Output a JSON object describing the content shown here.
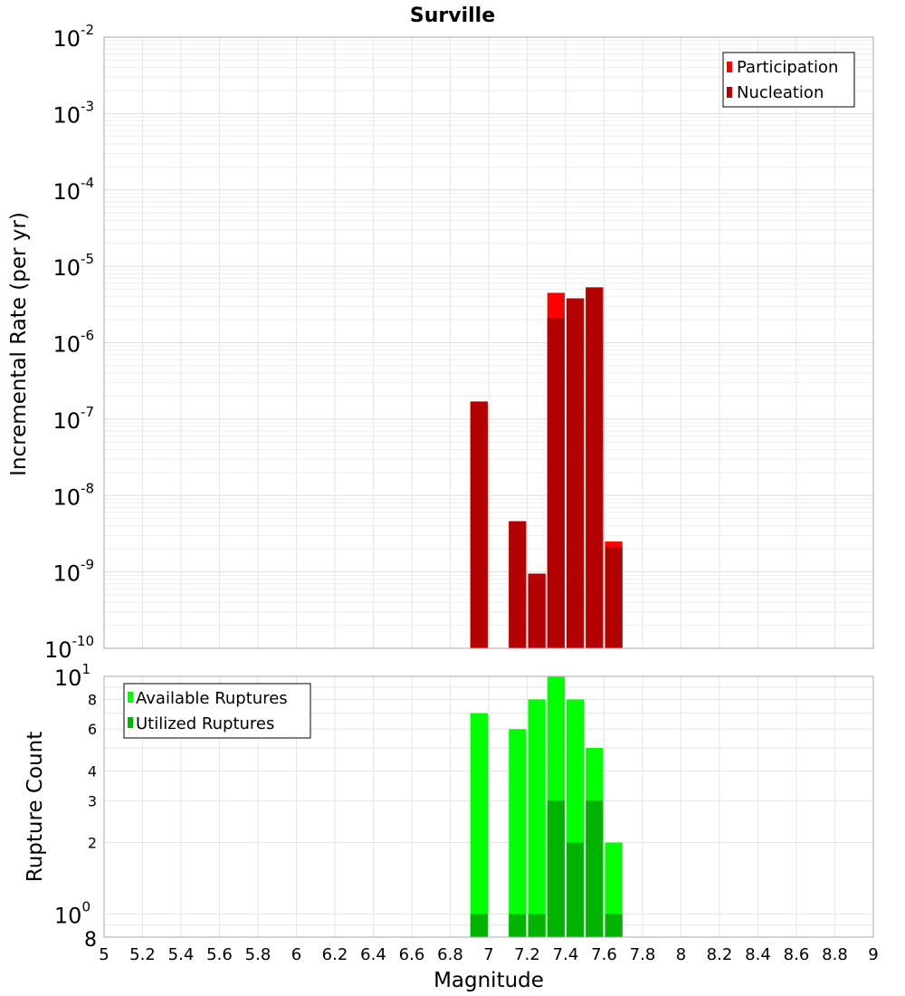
{
  "chart_data": [
    {
      "type": "bar",
      "title": "Surville",
      "ylabel": "Incremental Rate (per yr)",
      "xlabel": "",
      "yscale": "log",
      "ylim": [
        1e-10,
        0.01
      ],
      "xlim": [
        5,
        9
      ],
      "x_ticks": [
        "5",
        "5.2",
        "5.4",
        "5.6",
        "5.8",
        "6",
        "6.2",
        "6.4",
        "6.6",
        "6.8",
        "7",
        "7.2",
        "7.4",
        "7.6",
        "7.8",
        "8",
        "8.2",
        "8.4",
        "8.6",
        "8.8",
        "9"
      ],
      "y_tick_bases": [
        "10",
        "10",
        "10",
        "10",
        "10",
        "10",
        "10",
        "10",
        "10"
      ],
      "y_tick_exponents": [
        "-2",
        "-3",
        "-4",
        "-5",
        "-6",
        "-7",
        "-8",
        "-9",
        "-10"
      ],
      "legend_position": "top-right",
      "grid": true,
      "x": [
        6.95,
        7.15,
        7.25,
        7.35,
        7.45,
        7.55,
        7.65
      ],
      "series": [
        {
          "name": "Participation",
          "color": "#ff0000",
          "values": [
            1.7e-07,
            4.6e-09,
            9.5e-10,
            4.5e-06,
            3.8e-06,
            5.3e-06,
            2.5e-09
          ]
        },
        {
          "name": "Nucleation",
          "color": "#b30000",
          "values": [
            1.7e-07,
            4.6e-09,
            9.5e-10,
            2.1e-06,
            3.8e-06,
            5.3e-06,
            2.1e-09
          ]
        }
      ]
    },
    {
      "type": "bar",
      "title": "",
      "ylabel": "Rupture Count",
      "xlabel": "Magnitude",
      "yscale": "log",
      "ylim": [
        0.8,
        10
      ],
      "xlim": [
        5,
        9
      ],
      "x_ticks": [
        "5",
        "5.2",
        "5.4",
        "5.6",
        "5.8",
        "6",
        "6.2",
        "6.4",
        "6.6",
        "6.8",
        "7",
        "7.2",
        "7.4",
        "7.6",
        "7.8",
        "8",
        "8.2",
        "8.4",
        "8.6",
        "8.8",
        "9"
      ],
      "legend_position": "top-left",
      "grid": true,
      "x": [
        6.95,
        7.15,
        7.25,
        7.35,
        7.45,
        7.55,
        7.65
      ],
      "series": [
        {
          "name": "Available Ruptures",
          "color": "#00ff00",
          "values": [
            7,
            6,
            8,
            10,
            8,
            5,
            2
          ]
        },
        {
          "name": "Utilized Ruptures",
          "color": "#00b300",
          "values": [
            1,
            1,
            1,
            3,
            2,
            3,
            1
          ]
        }
      ]
    }
  ],
  "bottom_y_ticks": {
    "major": [
      {
        "value": 10,
        "base": "10",
        "exp": "1"
      },
      {
        "value": 1,
        "base": "10",
        "exp": "0"
      }
    ],
    "minor": [
      {
        "value": 8,
        "label": "8"
      },
      {
        "value": 6,
        "label": "6"
      },
      {
        "value": 4,
        "label": "4"
      },
      {
        "value": 3,
        "label": "3"
      },
      {
        "value": 2,
        "label": "2"
      }
    ],
    "bottom_label": {
      "value": 0.8,
      "label": "8"
    }
  }
}
